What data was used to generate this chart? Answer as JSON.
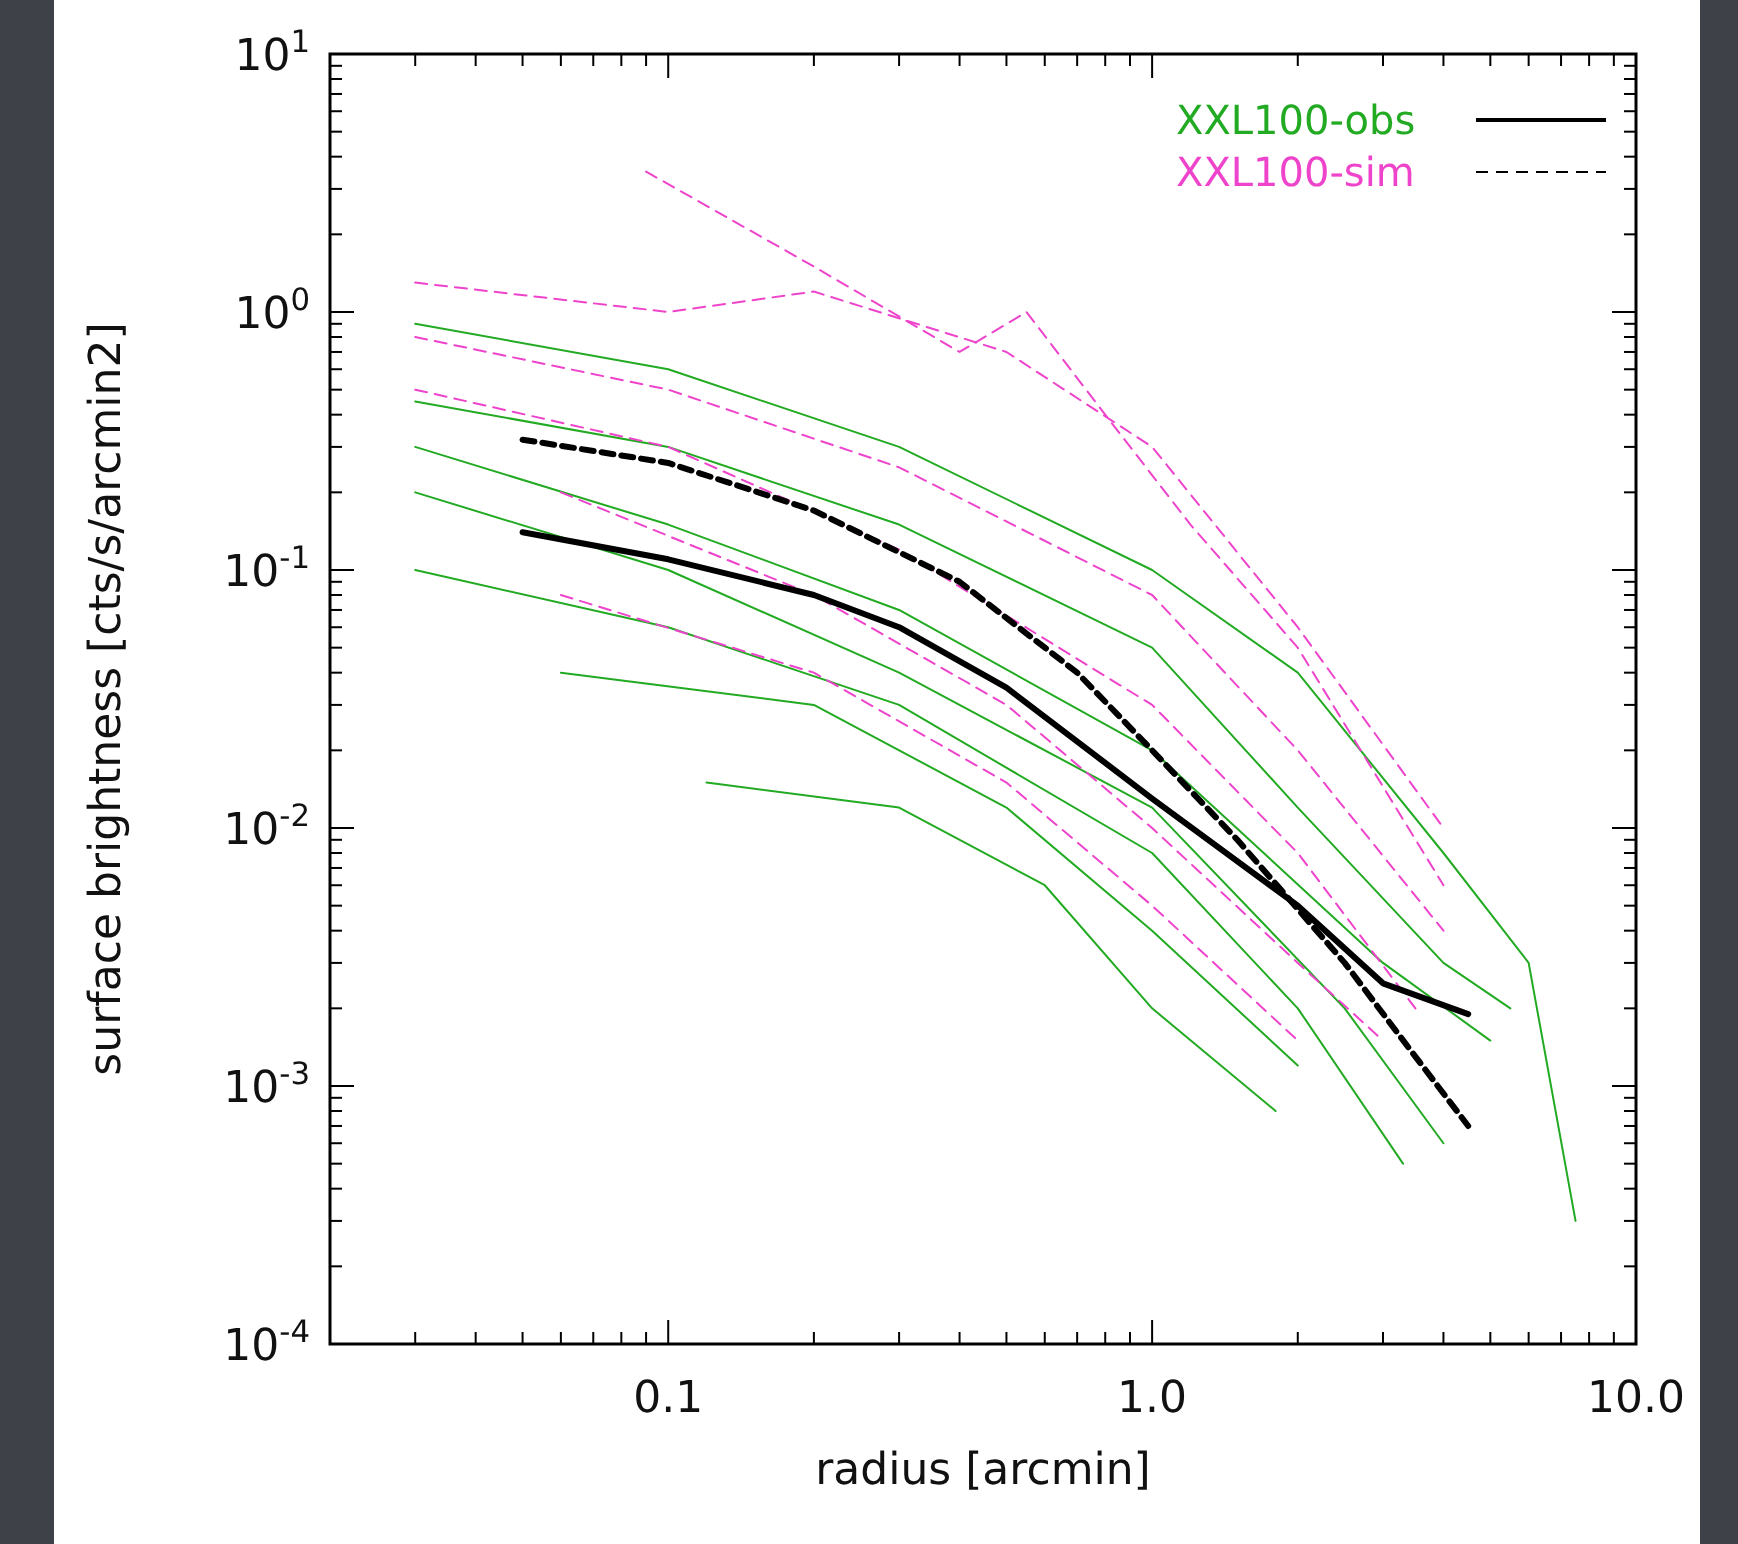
{
  "chart_data": {
    "type": "line",
    "xlabel": "radius [arcmin]",
    "ylabel": "surface brightness [cts/s/arcmin2]",
    "log": "xy",
    "xlim": [
      0.02,
      10
    ],
    "ylim": [
      0.0001,
      10
    ],
    "xticks": [
      {
        "value": 0.1,
        "label": "0.1"
      },
      {
        "value": 1,
        "label": "1.0"
      },
      {
        "value": 10,
        "label": "10.0"
      }
    ],
    "yticks": [
      {
        "value": 0.0001,
        "label": "10$^{-4}$"
      },
      {
        "value": 0.001,
        "label": "10$^{-3}$"
      },
      {
        "value": 0.01,
        "label": "10$^{-2}$"
      },
      {
        "value": 0.1,
        "label": "10$^{-1}$"
      },
      {
        "value": 1,
        "label": "10$^{0}$"
      },
      {
        "value": 10,
        "label": "10$^{1}$"
      }
    ],
    "legend": "top right",
    "grid": false,
    "series": [
      {
        "color": "#22aa22",
        "line_style": "solid",
        "x": [
          0.03,
          0.1,
          0.3,
          1,
          2,
          4,
          6,
          7.5
        ],
        "values": [
          0.9,
          0.6,
          0.3,
          0.1,
          0.04,
          0.008,
          0.003,
          0.0003
        ]
      },
      {
        "color": "#22aa22",
        "line_style": "solid",
        "x": [
          0.03,
          0.1,
          0.3,
          1,
          3,
          5
        ],
        "values": [
          0.3,
          0.15,
          0.07,
          0.02,
          0.003,
          0.0015
        ]
      },
      {
        "color": "#22aa22",
        "line_style": "solid",
        "x": [
          0.03,
          0.1,
          0.3,
          1,
          2,
          3.3
        ],
        "values": [
          0.1,
          0.06,
          0.03,
          0.008,
          0.002,
          0.0005
        ]
      },
      {
        "color": "#22aa22",
        "line_style": "solid",
        "x": [
          0.06,
          0.2,
          0.5,
          1,
          2
        ],
        "values": [
          0.04,
          0.03,
          0.012,
          0.004,
          0.0012
        ]
      },
      {
        "color": "#22aa22",
        "line_style": "solid",
        "x": [
          0.12,
          0.3,
          0.6,
          1,
          1.8
        ],
        "values": [
          0.015,
          0.012,
          0.006,
          0.002,
          0.0008
        ]
      },
      {
        "color": "#22aa22",
        "line_style": "solid",
        "x": [
          0.03,
          0.1,
          0.3,
          1,
          2,
          4,
          5.5
        ],
        "values": [
          0.45,
          0.3,
          0.15,
          0.05,
          0.012,
          0.003,
          0.002
        ]
      },
      {
        "color": "#22aa22",
        "line_style": "solid",
        "x": [
          0.03,
          0.1,
          0.3,
          1,
          2.5,
          4
        ],
        "values": [
          0.2,
          0.1,
          0.04,
          0.012,
          0.002,
          0.0006
        ]
      },
      {
        "color": "#ee44cc",
        "line_style": "dashed",
        "x": [
          0.03,
          0.1,
          0.2,
          0.5,
          1,
          2,
          4
        ],
        "values": [
          1.3,
          1.0,
          1.2,
          0.7,
          0.3,
          0.06,
          0.01
        ]
      },
      {
        "color": "#ee44cc",
        "line_style": "dashed",
        "x": [
          0.09,
          0.2,
          0.4,
          0.55,
          0.8,
          1.2,
          2,
          4
        ],
        "values": [
          3.5,
          1.5,
          0.7,
          1.0,
          0.4,
          0.15,
          0.05,
          0.006
        ]
      },
      {
        "color": "#ee44cc",
        "line_style": "dashed",
        "x": [
          0.03,
          0.1,
          0.3,
          1,
          2,
          4
        ],
        "values": [
          0.8,
          0.5,
          0.25,
          0.08,
          0.02,
          0.004
        ]
      },
      {
        "color": "#ee44cc",
        "line_style": "dashed",
        "x": [
          0.03,
          0.1,
          0.3,
          1,
          2,
          3.5
        ],
        "values": [
          0.5,
          0.3,
          0.12,
          0.03,
          0.008,
          0.002
        ]
      },
      {
        "color": "#ee44cc",
        "line_style": "dashed",
        "x": [
          0.06,
          0.2,
          0.5,
          1,
          2,
          3
        ],
        "values": [
          0.2,
          0.08,
          0.03,
          0.01,
          0.003,
          0.0015
        ]
      },
      {
        "color": "#ee44cc",
        "line_style": "dashed",
        "x": [
          0.06,
          0.2,
          0.5,
          1,
          2
        ],
        "values": [
          0.08,
          0.04,
          0.015,
          0.005,
          0.0015
        ]
      },
      {
        "name": "XXL100-obs",
        "color": "#000000",
        "line_style": "solid",
        "x": [
          0.05,
          0.1,
          0.2,
          0.3,
          0.5,
          1,
          2,
          3,
          4.5
        ],
        "values": [
          0.14,
          0.11,
          0.08,
          0.06,
          0.035,
          0.013,
          0.005,
          0.0025,
          0.0019
        ]
      },
      {
        "name": "XXL100-sim",
        "color": "#000000",
        "line_style": "dashed",
        "x": [
          0.05,
          0.1,
          0.2,
          0.4,
          0.7,
          1,
          1.5,
          2.5,
          3.5,
          4.5
        ],
        "values": [
          0.32,
          0.26,
          0.17,
          0.09,
          0.04,
          0.02,
          0.009,
          0.003,
          0.0013,
          0.0007
        ]
      }
    ]
  }
}
